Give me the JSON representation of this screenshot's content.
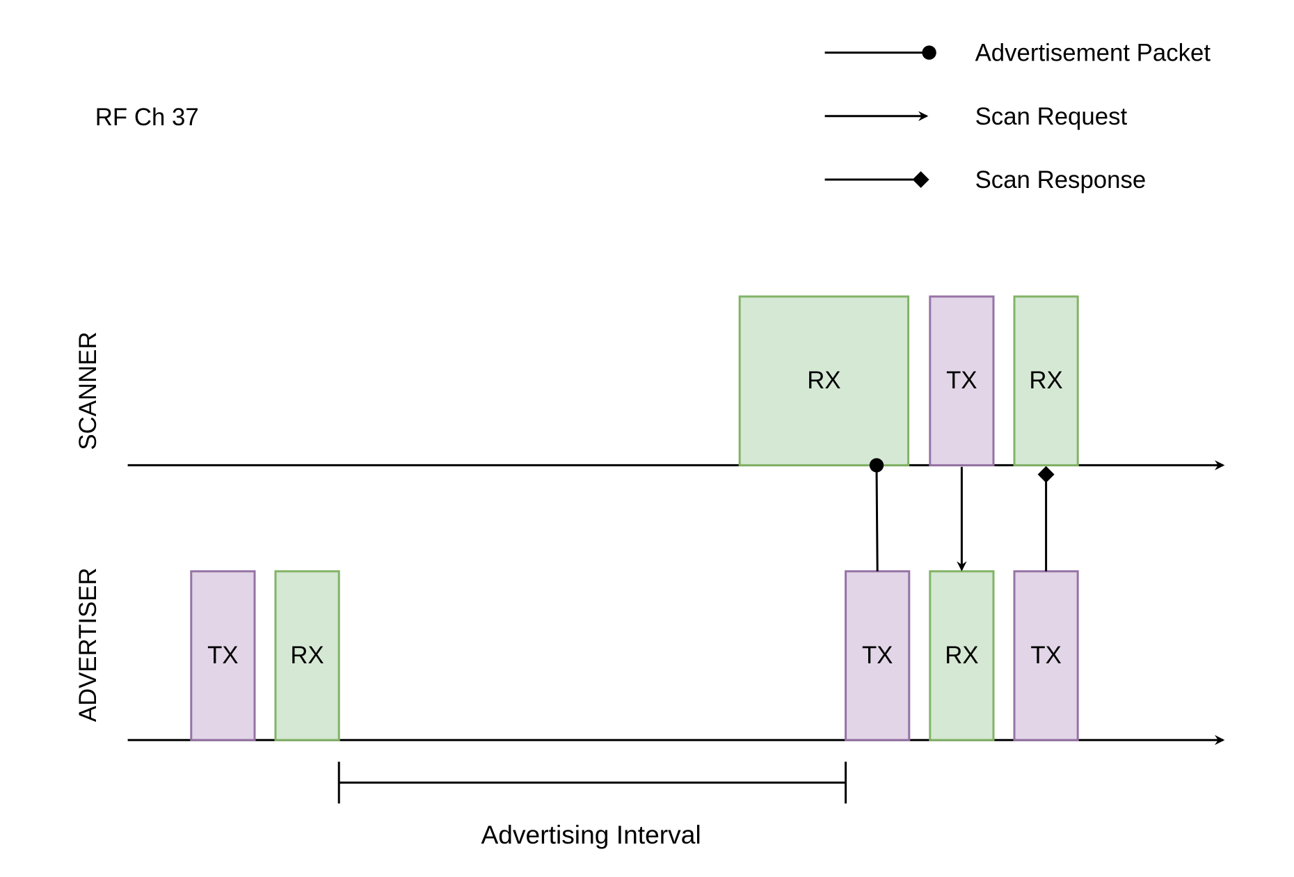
{
  "title": "RF Ch 37",
  "legend": [
    {
      "label": "Advertisement Packet",
      "marker": "circle"
    },
    {
      "label": "Scan Request",
      "marker": "arrow"
    },
    {
      "label": "Scan Response",
      "marker": "diamond"
    }
  ],
  "lanes": {
    "scanner": {
      "label": "SCANNER",
      "boxes": [
        {
          "label": "RX"
        },
        {
          "label": "TX"
        },
        {
          "label": "RX"
        }
      ]
    },
    "advertiser": {
      "label": "ADVERTISER",
      "boxes": [
        {
          "label": "TX"
        },
        {
          "label": "RX"
        },
        {
          "label": "TX"
        },
        {
          "label": "RX"
        },
        {
          "label": "TX"
        }
      ]
    }
  },
  "interval_label": "Advertising Interval",
  "colors": {
    "tx_fill": "#e1d5e7",
    "tx_stroke": "#9673a6",
    "rx_fill": "#d5e8d4",
    "rx_stroke": "#82b366"
  }
}
